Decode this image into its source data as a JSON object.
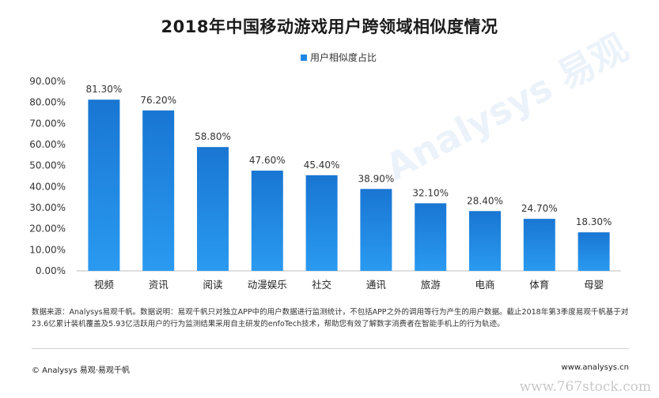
{
  "chart_data": {
    "type": "bar",
    "title": "2018年中国移动游戏用户跨领域相似度情况",
    "series": [
      {
        "name": "用户相似度占比",
        "values": [
          81.3,
          76.2,
          58.8,
          47.6,
          45.4,
          38.9,
          32.1,
          28.4,
          24.7,
          18.3
        ]
      }
    ],
    "categories": [
      "视频",
      "资讯",
      "阅读",
      "动漫娱乐",
      "社交",
      "通讯",
      "旅游",
      "电商",
      "体育",
      "母婴"
    ],
    "value_labels": [
      "81.30%",
      "76.20%",
      "58.80%",
      "47.60%",
      "45.40%",
      "38.90%",
      "32.10%",
      "28.40%",
      "24.70%",
      "18.30%"
    ],
    "y_ticks": [
      "0.00%",
      "10.00%",
      "20.00%",
      "30.00%",
      "40.00%",
      "50.00%",
      "60.00%",
      "70.00%",
      "80.00%",
      "90.00%"
    ],
    "ylim": [
      0,
      90
    ],
    "legend_position": "top-center",
    "grid": false,
    "bar_color": "#1e88e5"
  },
  "watermark": "Analysys 易观",
  "note": "数据来源：Analysys易观千帆。数据说明：易观千帆只对独立APP中的用户数据进行监测统计，不包括APP之外的调用等行为产生的用户数据。截止2018年第3季度易观千帆基于对23.6亿累计装机覆盖及5.93亿活跃用户的行为监测结果采用自主研发的enfoTech技术，帮助您有效了解数字消费者在智能手机上的行为轨迹。",
  "footer": {
    "left": "© Analysys 易观·易观千帆",
    "right": "www.analysys.cn",
    "stamp": "www.767stock.com"
  }
}
